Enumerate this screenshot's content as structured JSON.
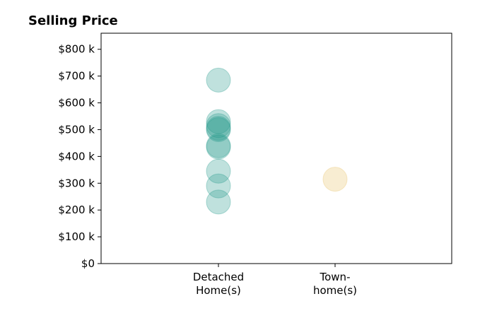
{
  "chart_data": {
    "type": "scatter",
    "title": "Selling Price",
    "xlabel": "",
    "ylabel": "",
    "categories": [
      [
        "Detached",
        "Home(s)"
      ],
      [
        "Town-",
        "home(s)"
      ]
    ],
    "ylim": [
      0,
      860
    ],
    "yticks": [
      0,
      100,
      200,
      300,
      400,
      500,
      600,
      700,
      800
    ],
    "ytick_labels": [
      "$0",
      "$100 k",
      "$200 k",
      "$300 k",
      "$400 k",
      "$500 k",
      "$600 k",
      "$700 k",
      "$800 k"
    ],
    "grid": false,
    "legend": "none",
    "series": [
      {
        "category_index": 0,
        "color": "#2a9d8f",
        "values": [
          685,
          530,
          515,
          505,
          500,
          440,
          435,
          345,
          290,
          230
        ]
      },
      {
        "category_index": 1,
        "color": "#e9c46a",
        "values": [
          315
        ]
      }
    ]
  }
}
